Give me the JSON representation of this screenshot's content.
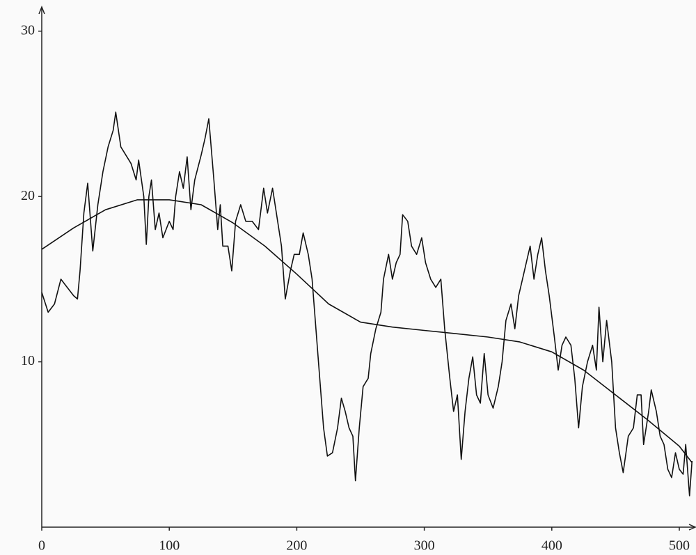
{
  "chart_data": {
    "type": "line",
    "xlim": [
      0,
      512
    ],
    "ylim": [
      0,
      31
    ],
    "xticks": [
      0,
      100,
      200,
      300,
      400,
      500
    ],
    "yticks": [
      10,
      20,
      30
    ],
    "series": [
      {
        "color": "#111111",
        "x": [
          0,
          5,
          10,
          15,
          20,
          25,
          28,
          30,
          33,
          36,
          40,
          44,
          48,
          52,
          56,
          58,
          62,
          66,
          70,
          74,
          76,
          80,
          82,
          84,
          86,
          89,
          92,
          95,
          100,
          103,
          105,
          108,
          111,
          114,
          117,
          120,
          125,
          128,
          131,
          135,
          138,
          140,
          142,
          146,
          149,
          152,
          156,
          160,
          165,
          170,
          174,
          177,
          181,
          185,
          188,
          191,
          195,
          198,
          202,
          205,
          209,
          212,
          215,
          218,
          221,
          224,
          228,
          232,
          235,
          238,
          241,
          244,
          246,
          249,
          252,
          256,
          258,
          262,
          266,
          268,
          272,
          275,
          278,
          281,
          283,
          287,
          290,
          294,
          298,
          301,
          305,
          309,
          313,
          316,
          320,
          323,
          326,
          329,
          332,
          335,
          338,
          341,
          344,
          347,
          350,
          354,
          358,
          361,
          364,
          368,
          371,
          374,
          377,
          380,
          383,
          386,
          389,
          392,
          395,
          398,
          402,
          405,
          408,
          411,
          415,
          418,
          421,
          424,
          428,
          432,
          435,
          437,
          440,
          443,
          447,
          450,
          453,
          456,
          460,
          464,
          467,
          470,
          472,
          476,
          478,
          482,
          485,
          488,
          491,
          494,
          497,
          500,
          503,
          505,
          508,
          510
        ],
        "values": [
          14.2,
          13,
          13.5,
          15,
          14.5,
          14,
          13.8,
          15.5,
          19,
          20.8,
          16.7,
          19.5,
          21.5,
          23,
          24,
          25.1,
          23,
          22.5,
          22,
          21,
          22.2,
          20,
          17.1,
          20,
          21,
          18,
          19,
          17.5,
          18.5,
          18,
          20,
          21.5,
          20.5,
          22.4,
          19.2,
          21,
          22.5,
          23.5,
          24.7,
          21,
          18,
          19.5,
          17,
          17,
          15.5,
          18.5,
          19.5,
          18.5,
          18.5,
          18,
          20.5,
          19,
          20.5,
          18.5,
          17,
          13.8,
          15.5,
          16.5,
          16.5,
          17.8,
          16.5,
          15,
          12,
          9,
          6,
          4.3,
          4.5,
          6,
          7.8,
          7,
          6,
          5.5,
          2.8,
          6,
          8.5,
          9,
          10.5,
          12,
          13,
          15,
          16.5,
          15,
          16,
          16.5,
          18.9,
          18.5,
          17,
          16.5,
          17.5,
          16,
          15,
          14.5,
          15,
          12,
          9,
          7,
          8,
          4.1,
          7,
          9,
          10.3,
          8,
          7.5,
          10.5,
          8,
          7.2,
          8.5,
          10,
          12.5,
          13.5,
          12,
          14,
          15,
          16,
          17,
          15,
          16.5,
          17.5,
          15.5,
          14,
          11.5,
          9.5,
          11,
          11.5,
          11,
          9,
          6,
          8.5,
          10,
          11,
          9.5,
          13.3,
          10,
          12.5,
          10,
          6,
          4.5,
          3.3,
          5.5,
          6,
          8,
          8,
          5,
          7,
          8.3,
          7,
          5.5,
          5,
          3.5,
          3,
          4.5,
          3.5,
          3.2,
          5,
          1.9,
          4
        ]
      },
      {
        "color": "#111111",
        "x": [
          0,
          25,
          50,
          75,
          100,
          125,
          150,
          175,
          200,
          225,
          250,
          275,
          300,
          325,
          350,
          375,
          400,
          425,
          450,
          475,
          500,
          510
        ],
        "values": [
          16.8,
          18.1,
          19.2,
          19.8,
          19.8,
          19.5,
          18.4,
          17,
          15.3,
          13.5,
          12.4,
          12.1,
          11.9,
          11.7,
          11.5,
          11.2,
          10.6,
          9.5,
          8,
          6.5,
          4.9,
          3.9
        ]
      }
    ]
  }
}
